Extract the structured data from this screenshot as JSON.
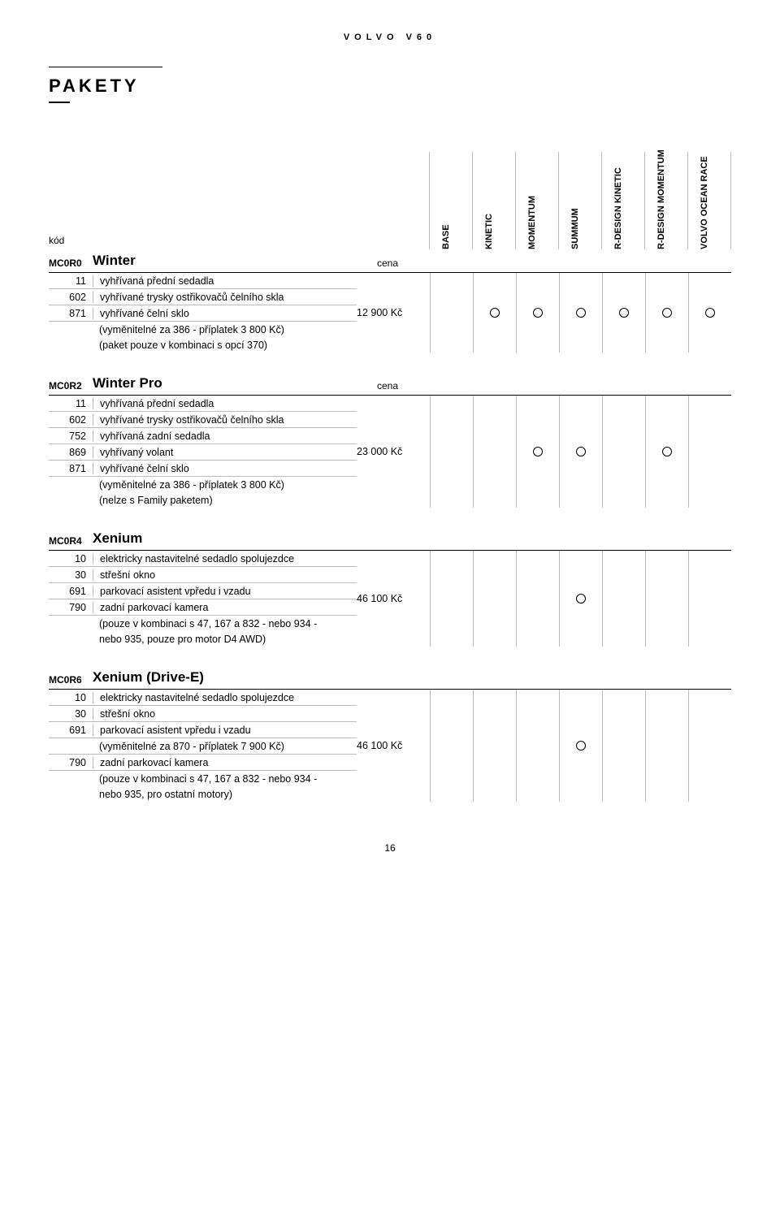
{
  "brand": "VOLVO  V60",
  "section": "PAKETY",
  "header": {
    "code_label": "kód",
    "columns": [
      "BASE",
      "KINETIC",
      "MOMENTUM",
      "SUMMUM",
      "R-DESIGN KINETIC",
      "R-DESIGN MOMENTUM",
      "VOLVO OCEAN RACE"
    ]
  },
  "blocks": [
    {
      "code": "MC0R0",
      "name": "Winter",
      "cena_label": "cena",
      "price": "12 900 Kč",
      "items": [
        {
          "c": "11",
          "t": "vyhřívaná přední sedadla"
        },
        {
          "c": "602",
          "t": "vyhřívané trysky ostřikovačů čelního skla"
        },
        {
          "c": "871",
          "t": "vyhřívané čelní sklo"
        }
      ],
      "notes": [
        "(vyměnitelné za 386 - příplatek 3 800 Kč)",
        "(paket pouze v kombinaci s opcí 370)"
      ],
      "avail": [
        false,
        true,
        true,
        true,
        true,
        true,
        true
      ]
    },
    {
      "code": "MC0R2",
      "name": "Winter Pro",
      "cena_label": "cena",
      "price": "23 000 Kč",
      "items": [
        {
          "c": "11",
          "t": "vyhřívaná přední sedadla"
        },
        {
          "c": "602",
          "t": "vyhřívané trysky ostřikovačů čelního skla"
        },
        {
          "c": "752",
          "t": "vyhřívaná zadní sedadla"
        },
        {
          "c": "869",
          "t": "vyhřívaný volant"
        },
        {
          "c": "871",
          "t": "vyhřívané čelní sklo"
        }
      ],
      "notes": [
        "(vyměnitelné za 386 - příplatek 3 800 Kč)",
        "(nelze s Family paketem)"
      ],
      "avail": [
        false,
        false,
        true,
        true,
        false,
        true,
        false
      ]
    },
    {
      "code": "MC0R4",
      "name": "Xenium",
      "cena_label": "",
      "price": "46 100 Kč",
      "items": [
        {
          "c": "10",
          "t": "elektricky nastavitelné sedadlo spolujezdce"
        },
        {
          "c": "30",
          "t": "střešní okno"
        },
        {
          "c": "691",
          "t": "parkovací asistent vpředu i vzadu"
        },
        {
          "c": "790",
          "t": "zadní parkovací kamera"
        }
      ],
      "notes": [
        "(pouze v kombinaci s 47, 167 a 832 - nebo 934 -",
        "nebo 935, pouze pro motor D4 AWD)"
      ],
      "avail": [
        false,
        false,
        false,
        true,
        false,
        false,
        false
      ]
    },
    {
      "code": "MC0R6",
      "name": "Xenium (Drive-E)",
      "cena_label": "",
      "price": "46 100 Kč",
      "items": [
        {
          "c": "10",
          "t": "elektricky nastavitelné sedadlo spolujezdce"
        },
        {
          "c": "30",
          "t": "střešní okno"
        },
        {
          "c": "691",
          "t": "parkovací asistent vpředu i vzadu"
        },
        {
          "c": "",
          "t": "(vyměnitelné za 870 - příplatek 7 900 Kč)"
        },
        {
          "c": "790",
          "t": "zadní parkovací kamera"
        }
      ],
      "notes": [
        "(pouze v kombinaci s 47, 167 a 832 - nebo 934 -",
        "nebo 935, pro ostatní motory)"
      ],
      "avail": [
        false,
        false,
        false,
        true,
        false,
        false,
        false
      ]
    }
  ],
  "page": "16"
}
